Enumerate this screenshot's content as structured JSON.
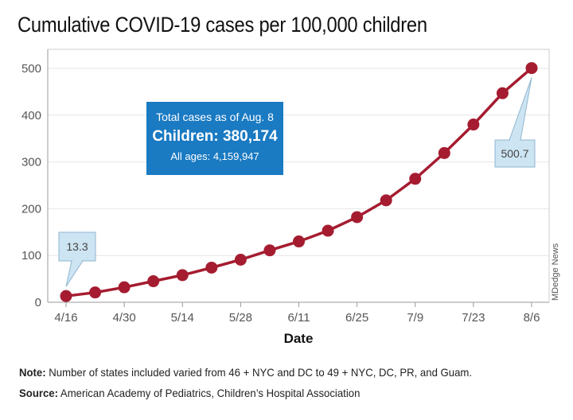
{
  "title": "Cumulative COVID-19 cases per 100,000 children",
  "totals_box": {
    "line1": "Total cases as of Aug. 8",
    "line2": "Children: 380,174",
    "line3": "All ages: 4,159,947"
  },
  "callouts": {
    "first": "13.3",
    "last": "500.7"
  },
  "note_label": "Note:",
  "note_text": " Number of states included varied from 46 + NYC and DC to 49 + NYC, DC, PR, and Guam.",
  "source_label": "Source:",
  "source_text": " American Academy of Pediatrics, Children’s Hospital Association",
  "credit": "MDedge News",
  "colors": {
    "line": "#a51c30",
    "callout_bg": "#cde4f2",
    "callout_border": "#8fb6d1",
    "box": "#1a7ac2",
    "grid": "#e6e6e6"
  },
  "chart_data": {
    "type": "line",
    "xlabel": "Date",
    "ylabel": "",
    "ylim": [
      0,
      500
    ],
    "yticks": [
      0,
      100,
      200,
      300,
      400,
      500
    ],
    "xtick_labels": [
      "4/16",
      "4/30",
      "5/14",
      "5/28",
      "6/11",
      "6/25",
      "7/9",
      "7/23",
      "8/6"
    ],
    "grid": "horizontal",
    "x": [
      "4/16",
      "4/23",
      "4/30",
      "5/7",
      "5/14",
      "5/21",
      "5/28",
      "6/4",
      "6/11",
      "6/18",
      "6/25",
      "7/2",
      "7/9",
      "7/16",
      "7/23",
      "7/30",
      "8/6"
    ],
    "series": [
      {
        "values": [
          13.3,
          21,
          32,
          45,
          58,
          74,
          91,
          111,
          130,
          153,
          182,
          218,
          264,
          319,
          380,
          447,
          500.7
        ]
      }
    ]
  }
}
